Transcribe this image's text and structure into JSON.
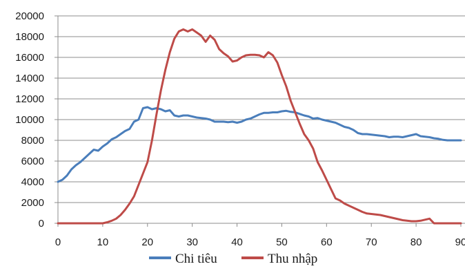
{
  "chart_data": {
    "type": "line",
    "title": "",
    "xlabel": "",
    "ylabel": "",
    "xlim": [
      0,
      90
    ],
    "ylim": [
      0,
      20000
    ],
    "x_ticks": [
      "0",
      "10",
      "20",
      "30",
      "40",
      "50",
      "60",
      "70",
      "80",
      "90"
    ],
    "y_ticks": [
      "0",
      "2000",
      "4000",
      "6000",
      "8000",
      "10000",
      "12000",
      "14000",
      "16000",
      "18000",
      "20000"
    ],
    "grid": "horizontal",
    "legend": "bottom",
    "series": [
      {
        "name": "Chi tiêu",
        "color": "#4a7ebb",
        "x": [
          0,
          1,
          2,
          3,
          4,
          5,
          6,
          7,
          8,
          9,
          10,
          11,
          12,
          13,
          14,
          15,
          16,
          17,
          18,
          19,
          20,
          21,
          22,
          23,
          24,
          25,
          26,
          27,
          28,
          29,
          30,
          31,
          32,
          33,
          34,
          35,
          36,
          37,
          38,
          39,
          40,
          41,
          42,
          43,
          44,
          45,
          46,
          47,
          48,
          49,
          50,
          51,
          52,
          53,
          54,
          55,
          56,
          57,
          58,
          59,
          60,
          61,
          62,
          63,
          64,
          65,
          66,
          67,
          68,
          69,
          70,
          71,
          72,
          73,
          74,
          75,
          76,
          77,
          78,
          79,
          80,
          81,
          82,
          83,
          84,
          85,
          86,
          87,
          88,
          89,
          90
        ],
        "y": [
          4000,
          4200,
          4600,
          5200,
          5600,
          5900,
          6300,
          6700,
          7100,
          7000,
          7400,
          7700,
          8100,
          8300,
          8600,
          8900,
          9100,
          9800,
          10000,
          11100,
          11200,
          11000,
          11100,
          11000,
          10800,
          10900,
          10400,
          10300,
          10400,
          10400,
          10300,
          10200,
          10150,
          10100,
          10000,
          9800,
          9800,
          9800,
          9750,
          9800,
          9700,
          9800,
          10000,
          10100,
          10300,
          10500,
          10650,
          10650,
          10700,
          10700,
          10800,
          10850,
          10750,
          10700,
          10550,
          10400,
          10300,
          10100,
          10150,
          10000,
          9900,
          9800,
          9700,
          9500,
          9300,
          9200,
          9000,
          8700,
          8600,
          8600,
          8550,
          8500,
          8450,
          8400,
          8300,
          8350,
          8350,
          8300,
          8400,
          8500,
          8600,
          8400,
          8350,
          8300,
          8200,
          8150,
          8050,
          8000,
          8000,
          8000,
          8000
        ]
      },
      {
        "name": "Thu nhập",
        "color": "#be4b48",
        "x": [
          0,
          1,
          2,
          3,
          4,
          5,
          6,
          7,
          8,
          9,
          10,
          11,
          12,
          13,
          14,
          15,
          16,
          17,
          18,
          19,
          20,
          21,
          22,
          23,
          24,
          25,
          26,
          27,
          28,
          29,
          30,
          31,
          32,
          33,
          34,
          35,
          36,
          37,
          38,
          39,
          40,
          41,
          42,
          43,
          44,
          45,
          46,
          47,
          48,
          49,
          50,
          51,
          52,
          53,
          54,
          55,
          56,
          57,
          58,
          59,
          60,
          61,
          62,
          63,
          64,
          65,
          66,
          67,
          68,
          69,
          70,
          71,
          72,
          73,
          74,
          75,
          76,
          77,
          78,
          79,
          80,
          81,
          82,
          83,
          84,
          85,
          86,
          87,
          88,
          89,
          90
        ],
        "y": [
          0,
          0,
          0,
          0,
          0,
          0,
          0,
          0,
          0,
          0,
          0,
          100,
          250,
          450,
          800,
          1300,
          1900,
          2600,
          3700,
          4800,
          5900,
          8000,
          10500,
          12800,
          14800,
          16500,
          17800,
          18500,
          18700,
          18500,
          18700,
          18400,
          18100,
          17500,
          18100,
          17700,
          16800,
          16400,
          16100,
          15600,
          15700,
          16000,
          16200,
          16250,
          16250,
          16200,
          16000,
          16500,
          16200,
          15500,
          14300,
          13200,
          11800,
          10700,
          9600,
          8600,
          8000,
          7200,
          5900,
          5100,
          4200,
          3300,
          2400,
          2200,
          1900,
          1700,
          1500,
          1300,
          1100,
          950,
          900,
          850,
          800,
          700,
          600,
          500,
          400,
          300,
          250,
          200,
          200,
          250,
          350,
          450,
          0,
          0,
          0,
          0,
          0,
          0,
          0
        ]
      }
    ]
  }
}
